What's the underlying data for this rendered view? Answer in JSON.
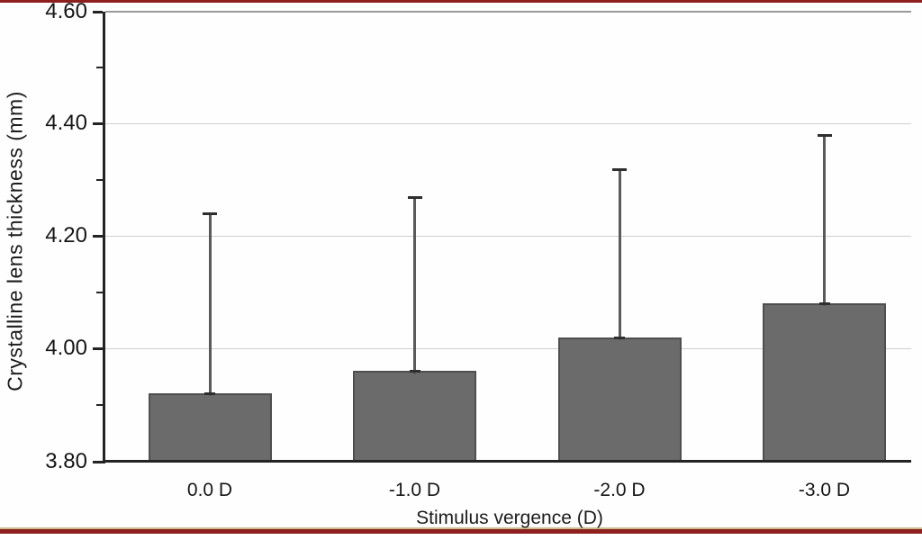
{
  "figure": {
    "frame_border_color": "#8e1f1f",
    "frame_border_accent_color": "#c9bd8e",
    "background_color": "#fefefe"
  },
  "chart_data": {
    "type": "bar",
    "title": "",
    "xlabel": "Stimulus vergence (D)",
    "ylabel": "Crystalline lens thickness (mm)",
    "categories": [
      "0.0 D",
      "-1.0 D",
      "-2.0 D",
      "-3.0 D"
    ],
    "series": [
      {
        "name": "Crystalline lens thickness",
        "values": [
          3.92,
          3.96,
          4.02,
          4.08
        ],
        "error_plus": [
          0.32,
          0.31,
          0.3,
          0.3
        ]
      }
    ],
    "ylim": [
      3.8,
      4.6
    ],
    "yticks_major": [
      {
        "value": 3.8,
        "label": "3.80"
      },
      {
        "value": 4.0,
        "label": "4.00"
      },
      {
        "value": 4.2,
        "label": "4.20"
      },
      {
        "value": 4.4,
        "label": "4.40"
      },
      {
        "value": 4.6,
        "label": "4.60"
      }
    ],
    "yticks_minor": [
      3.9,
      4.1,
      4.3,
      4.5
    ],
    "grid": "horizontal gridlines at major y ticks",
    "legend": "none",
    "colors": {
      "bar_fill": "#6b6b6b",
      "bar_border": "#4f4f4f",
      "error_line": "#5a5a5a",
      "error_cap": "#2e2e2e",
      "gridline": "#cfcfcf",
      "gridline_top": "#9a9a9a",
      "axis": "#232323",
      "text": "#161616"
    }
  }
}
